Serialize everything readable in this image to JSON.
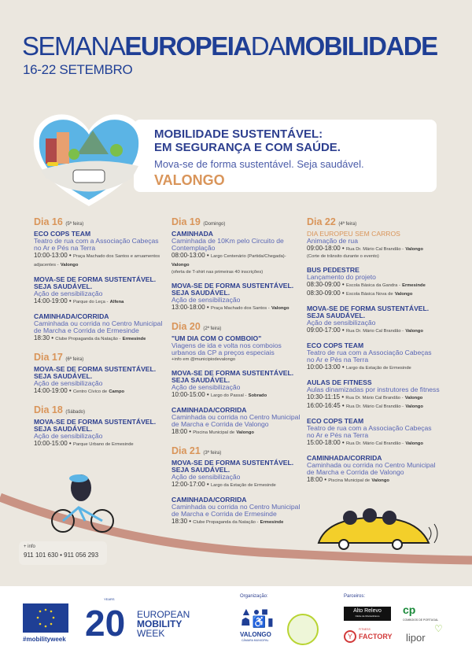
{
  "header": {
    "title_part1": "SEMANA",
    "title_part2": "EUROPEIA",
    "title_part3": "DA",
    "title_part4": "MOBILIDADE",
    "dates": "16-22 SETEMBRO"
  },
  "banner": {
    "line1": "MOBILIDADE SUSTENTÁVEL:",
    "line2": "EM SEGURANÇA E COM SAÚDE.",
    "tagline": "Mova-se de forma sustentável. Seja saudável.",
    "city": "VALONGO"
  },
  "colors": {
    "primary": "#1f3f95",
    "accent": "#d9955a",
    "background": "#ebe7df",
    "road": "#c99384"
  },
  "columns": [
    {
      "days": [
        {
          "day": "Dia 16",
          "weekday": "(5ª feira)",
          "events": [
            {
              "title": "ECO COPS TEAM",
              "subtitle": "Teatro de rua com a Associação Cabeças no Ar e Pés na Terra",
              "lines": [
                {
                  "time": "10:00-13:00",
                  "place": "Praça Machado dos Santos e arruamentos adjacentes -",
                  "town": "Valongo"
                }
              ]
            },
            {
              "title": "MOVA-SE DE FORMA SUSTENTÁVEL. SEJA SAUDÁVEL.",
              "subtitle": "Ação de sensibilização",
              "lines": [
                {
                  "time": "14:00-19:00",
                  "place": "Parque do Leça -",
                  "town": "Alfena"
                }
              ]
            },
            {
              "title": "CAMINHADA/CORRIDA",
              "subtitle": "Caminhada ou corrida no Centro Municipal de Marcha e Corrida de Ermesinde",
              "lines": [
                {
                  "time": "18:30",
                  "place": "Clube Propaganda da Natação -",
                  "town": "Ermesinde"
                }
              ]
            }
          ]
        },
        {
          "day": "Dia 17",
          "weekday": "(6ª feira)",
          "events": [
            {
              "title": "MOVA-SE DE FORMA SUSTENTÁVEL. SEJA SAUDÁVEL.",
              "subtitle": "Ação de sensibilização",
              "lines": [
                {
                  "time": "14:00-19:00",
                  "place": "Centro Cívico de",
                  "town": "Campo"
                }
              ]
            }
          ]
        },
        {
          "day": "Dia 18",
          "weekday": "(Sábado)",
          "events": [
            {
              "title": "MOVA-SE DE FORMA SUSTENTÁVEL. SEJA SAUDÁVEL.",
              "subtitle": "Ação de sensibilização",
              "lines": [
                {
                  "time": "10:00-15:00",
                  "place": "Parque Urbano de Ermesinde",
                  "town": ""
                }
              ]
            }
          ]
        }
      ]
    },
    {
      "days": [
        {
          "day": "Dia 19",
          "weekday": "(Domingo)",
          "events": [
            {
              "title": "CAMINHADA",
              "subtitle": "Caminhada de 10Km pelo Circuito de Contemplação",
              "lines": [
                {
                  "time": "08:00-13:00",
                  "place": "Largo Centenário (Partida/Chegada)-",
                  "town": "Valongo"
                }
              ],
              "note": "(oferta de T-shirt nas primeiras 40 inscrições)"
            },
            {
              "title": "MOVA-SE DE FORMA SUSTENTÁVEL. SEJA SAUDÁVEL.",
              "subtitle": "Ação de sensibilização",
              "lines": [
                {
                  "time": "13:00-18:00",
                  "place": "Praça Machado dos Santos -",
                  "town": "Valongo"
                }
              ]
            }
          ]
        },
        {
          "day": "Dia 20",
          "weekday": "(2ª feira)",
          "events": [
            {
              "title": "\"UM DIA COM O COMBOIO\"",
              "subtitle": "Viagens de ida e volta nos comboios urbanos da CP a preços especiais",
              "lines": [],
              "note": "+info em @municipiodevalongo"
            },
            {
              "title": "MOVA-SE DE FORMA SUSTENTÁVEL. SEJA SAUDÁVEL.",
              "subtitle": "Ação de sensibilização",
              "lines": [
                {
                  "time": "10:00-15:00",
                  "place": "Largo do Passal -",
                  "town": "Sobrado"
                }
              ]
            },
            {
              "title": "CAMINHADA/CORRIDA",
              "subtitle": "Caminhada ou corrida no Centro Municipal de Marcha e Corrida de Valongo",
              "lines": [
                {
                  "time": "18:00",
                  "place": "Piscina Municipal de",
                  "town": "Valongo"
                }
              ]
            }
          ]
        },
        {
          "day": "Dia 21",
          "weekday": "(3ª feira)",
          "events": [
            {
              "title": "MOVA-SE DE FORMA SUSTENTÁVEL. SEJA SAUDÁVEL.",
              "subtitle": "Ação de sensibilização",
              "lines": [
                {
                  "time": "12:00-17:00",
                  "place": "Largo da Estação de Ermesinde",
                  "town": ""
                }
              ]
            },
            {
              "title": "CAMINHADA/CORRIDA",
              "subtitle": "Caminhada ou corrida no Centro Municipal de Marcha e Corrida de Ermesinde",
              "lines": [
                {
                  "time": "18:30",
                  "place": "Clube Propaganda da Natação -",
                  "town": "Ermesinde"
                }
              ]
            }
          ]
        }
      ]
    },
    {
      "days": [
        {
          "day": "Dia 22",
          "weekday": "(4ª feira)",
          "events": [
            {
              "title": "DIA EUROPEU SEM CARROS",
              "highlight": true,
              "subtitle": "Animação de rua",
              "lines": [
                {
                  "time": "09:00-18:00",
                  "place": "Rua Dr. Mário Cal Brandão -",
                  "town": "Valongo"
                }
              ],
              "note": "(Corte de trânsito durante o evento)"
            },
            {
              "title": "BUS PEDESTRE",
              "subtitle": "Lançamento do projeto",
              "lines": [
                {
                  "time": "08:30-09:00",
                  "place": "Escola Básica da Gandra -",
                  "town": "Ermesinde"
                },
                {
                  "time": "08:30-09:00",
                  "place": "Escola Básica Nova de",
                  "town": "Valongo"
                }
              ]
            },
            {
              "title": "MOVA-SE DE FORMA SUSTENTÁVEL. SEJA SAUDÁVEL.",
              "subtitle": "Ação de sensibilização",
              "lines": [
                {
                  "time": "09:00-17:00",
                  "place": "Rua Dr. Mário Cal Brandão -",
                  "town": "Valongo"
                }
              ]
            },
            {
              "title": "ECO COPS TEAM",
              "subtitle": "Teatro de rua com a Associação Cabeças no Ar e Pés na Terra",
              "lines": [
                {
                  "time": "10:00-13:00",
                  "place": "Largo da Estação de Ermesinde",
                  "town": ""
                }
              ]
            },
            {
              "title": "AULAS DE FITNESS",
              "subtitle": "Aulas dinamizadas por instrutores de fitness",
              "lines": [
                {
                  "time": "10:30-11:15",
                  "place": "Rua Dr. Mário Cal Brandão -",
                  "town": "Valongo"
                },
                {
                  "time": "16:00-16:45",
                  "place": "Rua Dr. Mário Cal Brandão -",
                  "town": "Valongo"
                }
              ]
            },
            {
              "title": "ECO COPS TEAM",
              "subtitle": "Teatro de rua com a Associação Cabeças no Ar e Pés na Terra",
              "lines": [
                {
                  "time": "15:00-18:00",
                  "place": "Rua Dr. Mário Cal Brandão -",
                  "town": "Valongo"
                }
              ]
            },
            {
              "title": "CAMINHADA/CORRIDA",
              "subtitle": "Caminhada ou corrida no Centro Municipal de Marcha e Corrida de Valongo",
              "lines": [
                {
                  "time": "18:00",
                  "place": "Piscina Municipal de",
                  "town": "Valongo"
                }
              ]
            }
          ]
        }
      ]
    }
  ],
  "info": {
    "label": "+ info",
    "phones": "911 101 630 • 911 056 293"
  },
  "footer": {
    "hashtag": "#mobilityweek",
    "emw_years": "YEARS",
    "emw_line1": "EUROPEAN",
    "emw_line2": "MOBILITY",
    "emw_line3": "WEEK",
    "org_label": "Organização:",
    "org_name": "VALONGO",
    "org_sub": "CÂMARA MUNICIPAL",
    "partners_label": "Parceiros:",
    "partner1": "Alto Relevo",
    "partner1_sub": "Clube de Montanhismo",
    "partner2": "COMBOIOS DE PORTUGAL",
    "partner3": "FACTORY",
    "partner3_pre": "FITNESS",
    "partner4": "lipor"
  }
}
